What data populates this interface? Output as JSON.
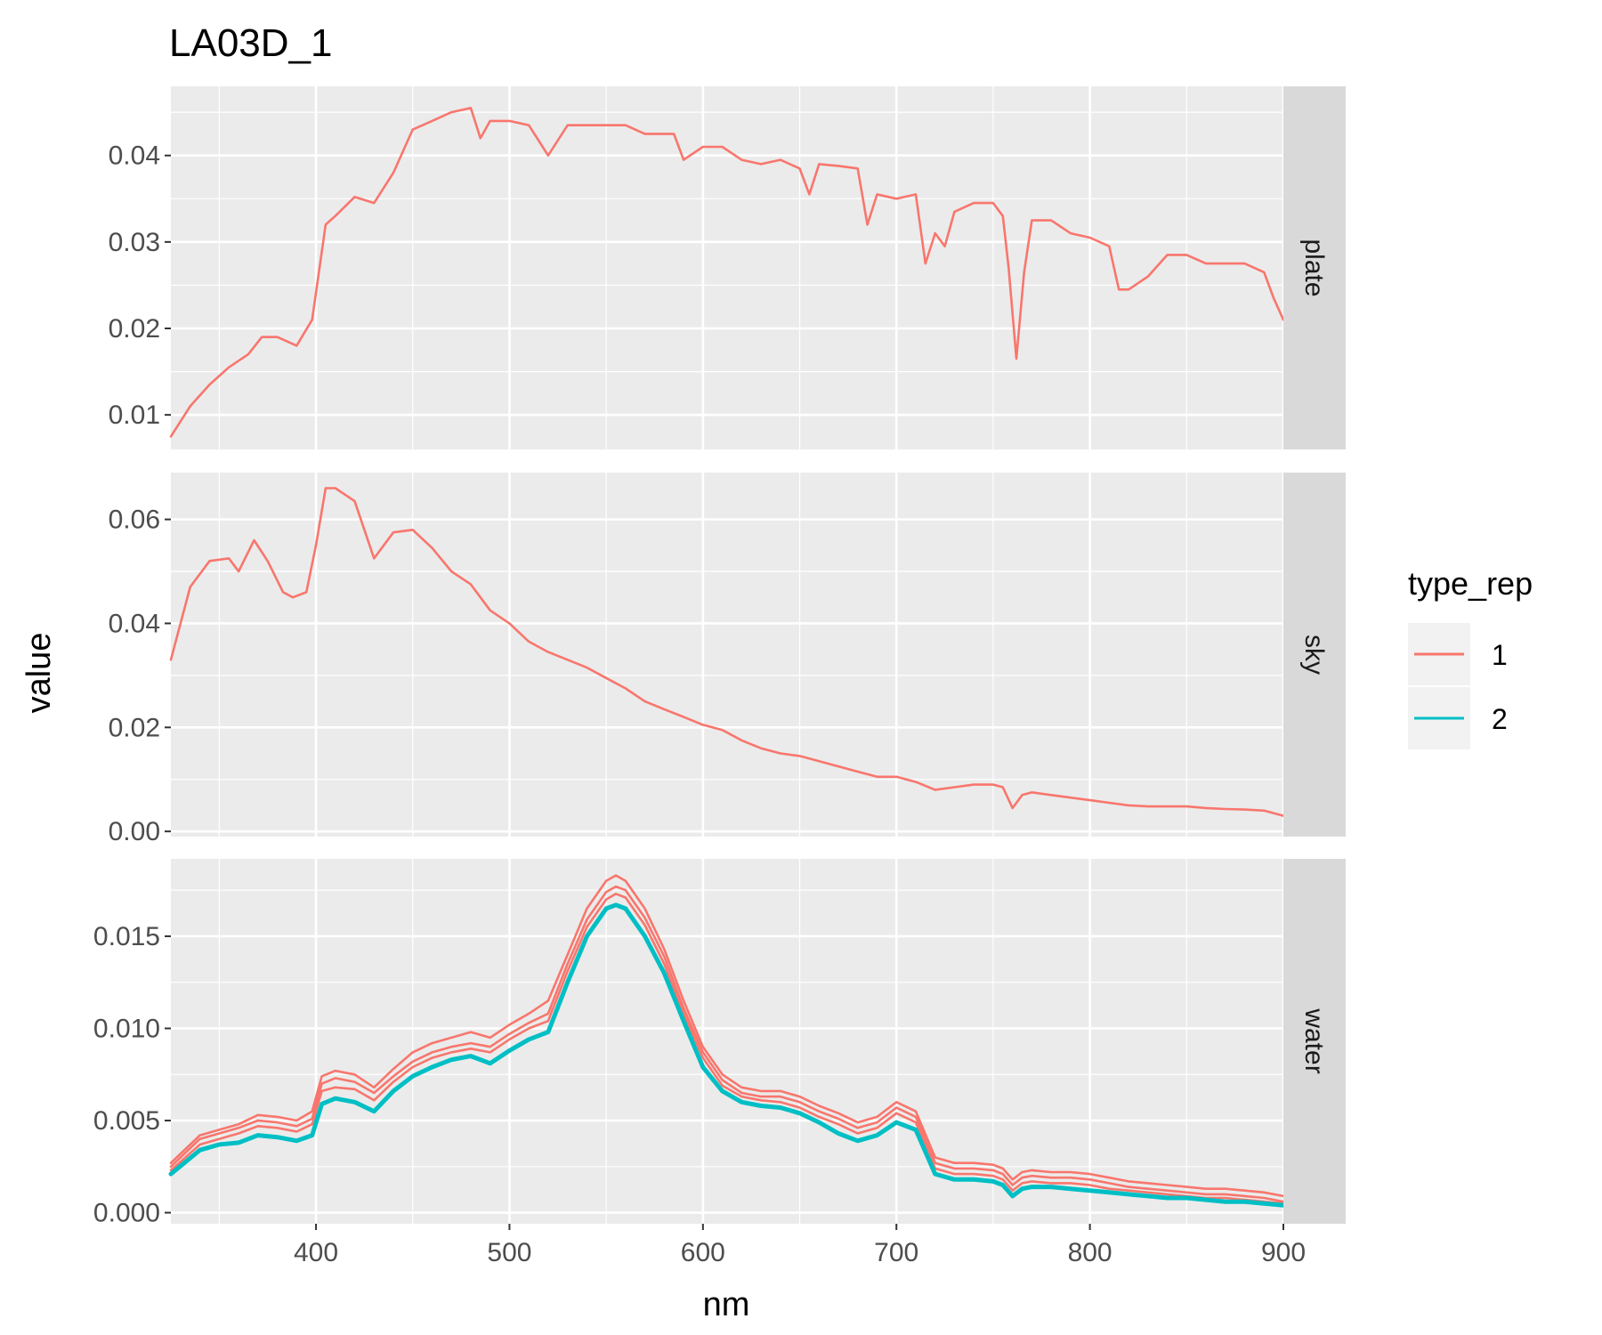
{
  "chart_data": {
    "type": "line",
    "title": "LA03D_1",
    "xlabel": "nm",
    "ylabel": "value",
    "xlim": [
      325,
      900
    ],
    "x_ticks": [
      400,
      500,
      600,
      700,
      800,
      900
    ],
    "x_tick_labels": [
      "400",
      "500",
      "600",
      "700",
      "800",
      "900"
    ],
    "grid": true,
    "colors": {
      "1": "#F8766D",
      "2": "#00BFC4"
    },
    "legend": {
      "title": "type_rep",
      "placement": "right",
      "entries": [
        {
          "label": "1",
          "color": "#F8766D"
        },
        {
          "label": "2",
          "color": "#00BFC4"
        }
      ]
    },
    "panels": [
      {
        "strip": "plate",
        "ylim": [
          0.006,
          0.048
        ],
        "y_ticks": [
          0.01,
          0.02,
          0.03,
          0.04
        ],
        "y_tick_labels": [
          "0.01",
          "0.02",
          "0.03",
          "0.04"
        ],
        "series": [
          {
            "type_rep": "1",
            "color": "#F8766D",
            "x": [
              325,
              335,
              345,
              355,
              365,
              372,
              380,
              390,
              398,
              405,
              410,
              420,
              430,
              440,
              450,
              460,
              470,
              480,
              485,
              490,
              500,
              510,
              520,
              530,
              540,
              550,
              560,
              570,
              580,
              585,
              590,
              600,
              610,
              620,
              630,
              640,
              650,
              655,
              660,
              670,
              680,
              685,
              690,
              700,
              710,
              715,
              720,
              725,
              730,
              740,
              750,
              755,
              758,
              762,
              766,
              770,
              780,
              790,
              800,
              810,
              815,
              820,
              830,
              840,
              850,
              860,
              870,
              880,
              890,
              895,
              900
            ],
            "y": [
              0.0075,
              0.011,
              0.0135,
              0.0155,
              0.017,
              0.019,
              0.019,
              0.018,
              0.021,
              0.032,
              0.033,
              0.0352,
              0.0345,
              0.038,
              0.043,
              0.044,
              0.045,
              0.0455,
              0.042,
              0.044,
              0.044,
              0.0435,
              0.04,
              0.0435,
              0.0435,
              0.0435,
              0.0435,
              0.0425,
              0.0425,
              0.0425,
              0.0395,
              0.041,
              0.041,
              0.0395,
              0.039,
              0.0395,
              0.0385,
              0.0355,
              0.039,
              0.0388,
              0.0385,
              0.032,
              0.0355,
              0.035,
              0.0355,
              0.0275,
              0.031,
              0.0295,
              0.0335,
              0.0345,
              0.0345,
              0.033,
              0.027,
              0.0165,
              0.0265,
              0.0325,
              0.0325,
              0.031,
              0.0305,
              0.0295,
              0.0245,
              0.0245,
              0.026,
              0.0285,
              0.0285,
              0.0275,
              0.0275,
              0.0275,
              0.0265,
              0.0235,
              0.021
            ]
          }
        ]
      },
      {
        "strip": "sky",
        "ylim": [
          -0.001,
          0.069
        ],
        "y_ticks": [
          0.0,
          0.02,
          0.04,
          0.06
        ],
        "y_tick_labels": [
          "0.00",
          "0.02",
          "0.04",
          "0.06"
        ],
        "series": [
          {
            "type_rep": "1",
            "color": "#F8766D",
            "x": [
              325,
              335,
              345,
              355,
              360,
              368,
              375,
              383,
              388,
              395,
              400,
              405,
              410,
              420,
              430,
              440,
              450,
              460,
              470,
              480,
              490,
              500,
              510,
              520,
              530,
              540,
              550,
              560,
              570,
              580,
              590,
              600,
              610,
              620,
              630,
              640,
              650,
              660,
              670,
              680,
              690,
              700,
              710,
              720,
              730,
              740,
              750,
              755,
              760,
              765,
              770,
              780,
              790,
              800,
              810,
              820,
              830,
              840,
              850,
              860,
              870,
              880,
              890,
              900
            ],
            "y": [
              0.033,
              0.047,
              0.052,
              0.0525,
              0.05,
              0.056,
              0.052,
              0.046,
              0.045,
              0.046,
              0.055,
              0.066,
              0.066,
              0.0635,
              0.0525,
              0.0575,
              0.058,
              0.0545,
              0.05,
              0.0475,
              0.0425,
              0.04,
              0.0365,
              0.0345,
              0.033,
              0.0315,
              0.0295,
              0.0275,
              0.025,
              0.0235,
              0.022,
              0.0205,
              0.0195,
              0.0175,
              0.016,
              0.015,
              0.0145,
              0.0135,
              0.0125,
              0.0115,
              0.0105,
              0.0105,
              0.0095,
              0.008,
              0.0085,
              0.009,
              0.009,
              0.0085,
              0.0045,
              0.007,
              0.0075,
              0.007,
              0.0065,
              0.006,
              0.0055,
              0.005,
              0.0048,
              0.0048,
              0.0048,
              0.0045,
              0.0043,
              0.0042,
              0.004,
              0.003
            ]
          }
        ]
      },
      {
        "strip": "water",
        "ylim": [
          -0.0006,
          0.0192
        ],
        "y_ticks": [
          0.0,
          0.005,
          0.01,
          0.015
        ],
        "y_tick_labels": [
          "0.000",
          "0.005",
          "0.010",
          "0.015"
        ],
        "series": [
          {
            "type_rep": "1",
            "color": "#F8766D",
            "x": [
              325,
              340,
              350,
              360,
              370,
              380,
              390,
              398,
              403,
              410,
              420,
              430,
              440,
              450,
              460,
              470,
              480,
              490,
              500,
              510,
              520,
              530,
              540,
              550,
              555,
              560,
              570,
              580,
              590,
              600,
              610,
              620,
              630,
              640,
              650,
              660,
              670,
              680,
              690,
              700,
              710,
              720,
              730,
              740,
              750,
              755,
              760,
              765,
              770,
              780,
              790,
              800,
              810,
              820,
              830,
              840,
              850,
              860,
              870,
              880,
              890,
              900
            ],
            "y": [
              0.0027,
              0.0042,
              0.0045,
              0.0048,
              0.0053,
              0.0052,
              0.005,
              0.0055,
              0.0074,
              0.0077,
              0.0075,
              0.0068,
              0.0078,
              0.0087,
              0.0092,
              0.0095,
              0.0098,
              0.0095,
              0.0102,
              0.0108,
              0.0115,
              0.014,
              0.0165,
              0.018,
              0.0183,
              0.018,
              0.0165,
              0.0143,
              0.0115,
              0.009,
              0.0075,
              0.0068,
              0.0066,
              0.0066,
              0.0063,
              0.0058,
              0.0054,
              0.0049,
              0.0052,
              0.006,
              0.0055,
              0.003,
              0.0027,
              0.0027,
              0.0026,
              0.0024,
              0.0018,
              0.0022,
              0.0023,
              0.0022,
              0.0022,
              0.0021,
              0.0019,
              0.0017,
              0.0016,
              0.0015,
              0.0014,
              0.0013,
              0.0013,
              0.0012,
              0.0011,
              0.0009
            ]
          },
          {
            "type_rep": "1",
            "color": "#F8766D",
            "x": [
              325,
              340,
              350,
              360,
              370,
              380,
              390,
              398,
              403,
              410,
              420,
              430,
              440,
              450,
              460,
              470,
              480,
              490,
              500,
              510,
              520,
              530,
              540,
              550,
              555,
              560,
              570,
              580,
              590,
              600,
              610,
              620,
              630,
              640,
              650,
              660,
              670,
              680,
              690,
              700,
              710,
              720,
              730,
              740,
              750,
              755,
              760,
              765,
              770,
              780,
              790,
              800,
              810,
              820,
              830,
              840,
              850,
              860,
              870,
              880,
              890,
              900
            ],
            "y": [
              0.0025,
              0.004,
              0.0043,
              0.0046,
              0.005,
              0.0049,
              0.0047,
              0.0051,
              0.007,
              0.0073,
              0.0071,
              0.0065,
              0.0074,
              0.0082,
              0.0087,
              0.009,
              0.0092,
              0.009,
              0.0097,
              0.0103,
              0.0108,
              0.0135,
              0.0159,
              0.0174,
              0.0177,
              0.0175,
              0.016,
              0.0139,
              0.0111,
              0.0087,
              0.0072,
              0.0065,
              0.0063,
              0.0063,
              0.006,
              0.0055,
              0.0051,
              0.0046,
              0.0049,
              0.0057,
              0.0052,
              0.0027,
              0.0024,
              0.0024,
              0.0023,
              0.0021,
              0.0015,
              0.0019,
              0.002,
              0.0019,
              0.0019,
              0.0018,
              0.0016,
              0.0014,
              0.0013,
              0.0012,
              0.0011,
              0.001,
              0.001,
              0.0009,
              0.0008,
              0.0006
            ]
          },
          {
            "type_rep": "1",
            "color": "#F8766D",
            "x": [
              325,
              340,
              350,
              360,
              370,
              380,
              390,
              398,
              403,
              410,
              420,
              430,
              440,
              450,
              460,
              470,
              480,
              490,
              500,
              510,
              520,
              530,
              540,
              550,
              555,
              560,
              570,
              580,
              590,
              600,
              610,
              620,
              630,
              640,
              650,
              660,
              670,
              680,
              690,
              700,
              710,
              720,
              730,
              740,
              750,
              755,
              760,
              765,
              770,
              780,
              790,
              800,
              810,
              820,
              830,
              840,
              850,
              860,
              870,
              880,
              890,
              900
            ],
            "y": [
              0.0023,
              0.0037,
              0.004,
              0.0043,
              0.0047,
              0.0046,
              0.0044,
              0.0048,
              0.0066,
              0.0068,
              0.0067,
              0.0061,
              0.0071,
              0.0079,
              0.0084,
              0.0087,
              0.0089,
              0.0087,
              0.0094,
              0.01,
              0.0104,
              0.0131,
              0.0155,
              0.017,
              0.0173,
              0.0171,
              0.0156,
              0.0135,
              0.0108,
              0.0084,
              0.0069,
              0.0063,
              0.0061,
              0.006,
              0.0057,
              0.0052,
              0.0048,
              0.0043,
              0.0046,
              0.0054,
              0.0049,
              0.0024,
              0.0021,
              0.0021,
              0.002,
              0.0018,
              0.0012,
              0.0016,
              0.0017,
              0.0016,
              0.0016,
              0.0015,
              0.0013,
              0.0012,
              0.0011,
              0.001,
              0.0009,
              0.0008,
              0.0008,
              0.0007,
              0.0006,
              0.0005
            ]
          },
          {
            "type_rep": "2",
            "color": "#00BFC4",
            "x": [
              325,
              340,
              350,
              360,
              370,
              380,
              390,
              398,
              403,
              410,
              420,
              430,
              440,
              450,
              460,
              470,
              480,
              490,
              500,
              510,
              520,
              530,
              540,
              550,
              555,
              560,
              570,
              580,
              590,
              600,
              610,
              620,
              630,
              640,
              650,
              660,
              670,
              680,
              690,
              700,
              710,
              720,
              730,
              740,
              750,
              755,
              760,
              765,
              770,
              780,
              790,
              800,
              810,
              820,
              830,
              840,
              850,
              860,
              870,
              880,
              890,
              900
            ],
            "y": [
              0.0021,
              0.0034,
              0.0037,
              0.0038,
              0.0042,
              0.0041,
              0.0039,
              0.0042,
              0.0059,
              0.0062,
              0.006,
              0.0055,
              0.0066,
              0.0074,
              0.0079,
              0.0083,
              0.0085,
              0.0081,
              0.0088,
              0.0094,
              0.0098,
              0.0125,
              0.015,
              0.0165,
              0.0167,
              0.0165,
              0.015,
              0.013,
              0.0104,
              0.0079,
              0.0066,
              0.006,
              0.0058,
              0.0057,
              0.0054,
              0.0049,
              0.0043,
              0.0039,
              0.0042,
              0.0049,
              0.0045,
              0.0021,
              0.0018,
              0.0018,
              0.0017,
              0.0015,
              0.0009,
              0.0013,
              0.0014,
              0.0014,
              0.0013,
              0.0012,
              0.0011,
              0.001,
              0.0009,
              0.0008,
              0.0008,
              0.0007,
              0.0006,
              0.0006,
              0.0005,
              0.0004
            ]
          }
        ]
      }
    ]
  }
}
